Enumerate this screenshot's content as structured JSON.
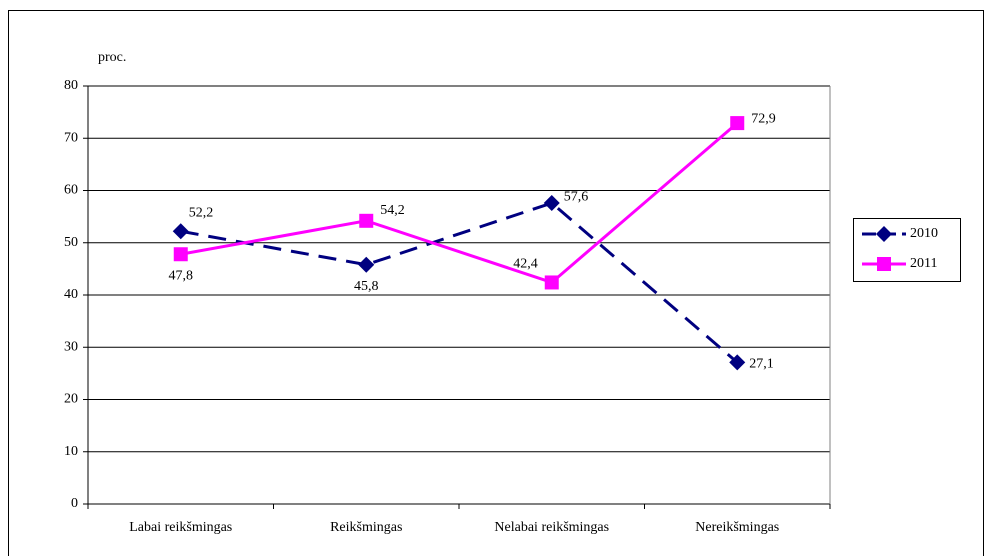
{
  "chart_data": {
    "type": "line",
    "y_label": "proc.",
    "categories": [
      "Labai reikšmingas",
      "Reikšmingas",
      "Nelabai reikšmingas",
      "Nereikšmingas"
    ],
    "series": [
      {
        "name": "2010",
        "color": "#000080",
        "values": [
          52.2,
          45.8,
          57.6,
          27.1
        ],
        "value_labels": [
          "52,2",
          "45,8",
          "57,6",
          "27,1"
        ]
      },
      {
        "name": "2011",
        "color": "#ff00ff",
        "values": [
          47.8,
          54.2,
          42.4,
          72.9
        ],
        "value_labels": [
          "47,8",
          "54,2",
          "42,4",
          "72,9"
        ]
      }
    ],
    "ylim": [
      0,
      80
    ],
    "yticks": [
      0,
      10,
      20,
      30,
      40,
      50,
      60,
      70,
      80
    ],
    "grid": true,
    "legend": "right"
  }
}
